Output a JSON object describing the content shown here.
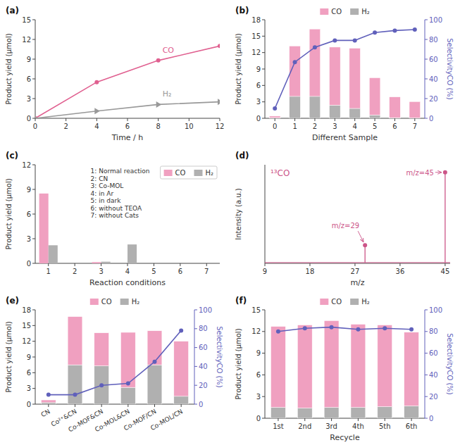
{
  "chart_data": [
    {
      "type": "line",
      "title": "(a)",
      "x": [
        0,
        4,
        8,
        12
      ],
      "xlabel": "Time / h",
      "ylabel": "Product yield (μmol)",
      "xlim": [
        0,
        12
      ],
      "ylim": [
        0,
        15
      ],
      "xticks": [
        0,
        2,
        4,
        6,
        8,
        10,
        12
      ],
      "yticks": [
        0,
        3,
        6,
        9,
        12,
        15
      ],
      "series": [
        {
          "name": "CO",
          "color": "#e06090",
          "marker": "circle",
          "values": [
            0,
            5.5,
            8.8,
            11.0
          ]
        },
        {
          "name": "H₂",
          "color": "#999999",
          "marker": "triangle-right",
          "values": [
            0,
            1.1,
            2.1,
            2.5
          ]
        }
      ]
    },
    {
      "type": "bar",
      "stacked": true,
      "title": "(b)",
      "categories": [
        "0",
        "1",
        "2",
        "3",
        "4",
        "5",
        "6",
        "7"
      ],
      "xlabel": "Different Sample",
      "ylabel": "Product yield (μmol)",
      "y2label": "SelectivityCO (%)",
      "ylim": [
        0,
        18
      ],
      "yticks": [
        0,
        3,
        6,
        9,
        12,
        15,
        18
      ],
      "y2lim": [
        0,
        100
      ],
      "y2ticks": [
        0,
        20,
        40,
        60,
        80,
        100
      ],
      "legend": "top",
      "series": [
        {
          "name": "H₂",
          "color": "#b0b0b0",
          "values": [
            0.1,
            4.0,
            4.0,
            2.4,
            1.8,
            0.6,
            0.1,
            0.05
          ]
        },
        {
          "name": "CO",
          "color": "#f0a0c0",
          "values": [
            0.3,
            9.2,
            12.3,
            10.6,
            11.0,
            6.8,
            3.8,
            3.0
          ]
        },
        {
          "type": "line",
          "axis": "y2",
          "color": "#6060bb",
          "marker": "circle",
          "values": [
            10,
            57,
            72,
            79,
            79,
            87,
            89,
            90
          ]
        }
      ]
    },
    {
      "type": "bar",
      "title": "(c)",
      "categories": [
        "1",
        "2",
        "3",
        "4",
        "5",
        "6",
        "7"
      ],
      "xlabel": "Reaction conditions",
      "ylabel": "Product yield (μmol)",
      "ylim": [
        0,
        12
      ],
      "yticks": [
        0,
        3,
        6,
        9,
        12
      ],
      "legend": "upper right",
      "annotations": [
        "1: Normal reaction",
        "2: CN",
        "3: Co-MOL",
        "4: in Ar",
        "5: in dark",
        "6: without TEOA",
        "7: without Cats"
      ],
      "series": [
        {
          "name": "CO",
          "color": "#f0a0c0",
          "values": [
            8.5,
            0.0,
            0.15,
            0.0,
            0.0,
            0.0,
            0.0
          ]
        },
        {
          "name": "H₂",
          "color": "#b0b0b0",
          "values": [
            2.2,
            0.0,
            0.2,
            2.3,
            0.0,
            0.0,
            0.0
          ]
        }
      ]
    },
    {
      "type": "stem",
      "title": "(d)",
      "subtitle": "¹³CO",
      "xlabel": "m/z",
      "ylabel": "Intensity (a.u.)",
      "xlim": [
        9,
        46
      ],
      "ylim": [
        0,
        6.5
      ],
      "xticks": [
        9,
        18,
        27,
        36,
        45
      ],
      "tick_labels": "x",
      "color": "#cc5588",
      "baseline": 0.05,
      "x": [
        29,
        45
      ],
      "series": [
        {
          "marker": "circle",
          "values": [
            1.2,
            6.0
          ]
        }
      ],
      "annotations": [
        {
          "text": "m/z=29",
          "x": 29,
          "y": 1.2
        },
        {
          "text": "m/z=45",
          "x": 45,
          "y": 6.0
        }
      ]
    },
    {
      "type": "bar",
      "stacked": true,
      "title": "(e)",
      "categories": [
        "CN",
        "Co²⁺&CN",
        "Co-MOF&CN",
        "Co-MOL&CN",
        "Co-MOF/CN",
        "Co-MOL/CN"
      ],
      "ylabel": "Product yield (μmol)",
      "y2label": "SelectivityCO (%)",
      "ylim": [
        0,
        18
      ],
      "yticks": [
        0,
        3,
        6,
        9,
        12,
        15,
        18
      ],
      "y2lim": [
        0,
        100
      ],
      "y2ticks": [
        0,
        20,
        40,
        60,
        80,
        100
      ],
      "legend": "top",
      "series": [
        {
          "name": "H₂",
          "color": "#b0b0b0",
          "values": [
            0.3,
            7.5,
            7.3,
            3.2,
            7.5,
            1.5
          ]
        },
        {
          "name": "CO",
          "color": "#f0a0c0",
          "values": [
            0.5,
            9.2,
            6.3,
            10.5,
            6.5,
            10.5
          ]
        },
        {
          "type": "line",
          "axis": "y2",
          "color": "#6060bb",
          "marker": "circle",
          "values": [
            10,
            10,
            20,
            22,
            45,
            78
          ]
        }
      ]
    },
    {
      "type": "bar",
      "stacked": true,
      "title": "(f)",
      "categories": [
        "1st",
        "2nd",
        "3rd",
        "4th",
        "5th",
        "6th"
      ],
      "xlabel": "Recycle",
      "ylabel": "Product yield (μmol)",
      "y2label": "SelectivityCO (%)",
      "ylim": [
        0,
        15
      ],
      "yticks": [
        0,
        3,
        6,
        9,
        12,
        15
      ],
      "y2lim": [
        0,
        100
      ],
      "y2ticks": [
        0,
        20,
        40,
        60,
        80,
        100
      ],
      "legend": "top",
      "series": [
        {
          "name": "H₂",
          "color": "#b0b0b0",
          "values": [
            1.5,
            1.4,
            1.5,
            1.5,
            1.6,
            1.7
          ]
        },
        {
          "name": "CO",
          "color": "#f0a0c0",
          "values": [
            11.2,
            11.5,
            12.0,
            11.5,
            11.3,
            10.2
          ]
        },
        {
          "type": "line",
          "axis": "y2",
          "color": "#6060bb",
          "marker": "circle",
          "values": [
            80,
            83,
            84,
            82,
            83,
            82
          ]
        }
      ]
    }
  ]
}
